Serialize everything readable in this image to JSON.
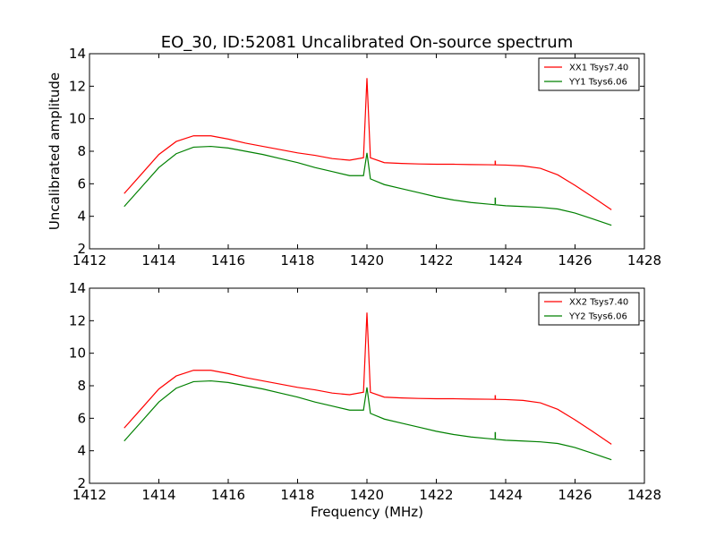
{
  "title": "EO_30, ID:52081 Uncalibrated On-source spectrum",
  "chart_data": [
    {
      "type": "line",
      "ylabel": "Uncalibrated amplitude",
      "xlabel": "",
      "xlim": [
        1412,
        1428
      ],
      "ylim": [
        2,
        14
      ],
      "xticks": [
        "1412",
        "1414",
        "1416",
        "1418",
        "1420",
        "1422",
        "1424",
        "1426",
        "1428"
      ],
      "yticks": [
        "2",
        "4",
        "6",
        "8",
        "10",
        "12",
        "14"
      ],
      "legend_position": "top-right",
      "series": [
        {
          "name": "XX1 Tsys7.40",
          "color": "#ff0000",
          "x": [
            1413.0,
            1413.5,
            1414.0,
            1414.5,
            1415.0,
            1415.5,
            1416.0,
            1416.5,
            1417.0,
            1417.5,
            1418.0,
            1418.5,
            1419.0,
            1419.5,
            1419.9,
            1420.0,
            1420.1,
            1420.5,
            1421.0,
            1421.5,
            1422.0,
            1422.5,
            1423.0,
            1423.5,
            1424.0,
            1424.5,
            1425.0,
            1425.5,
            1426.0,
            1426.5,
            1427.05
          ],
          "y": [
            5.4,
            6.6,
            7.8,
            8.6,
            8.95,
            8.95,
            8.75,
            8.5,
            8.3,
            8.1,
            7.9,
            7.75,
            7.55,
            7.45,
            7.6,
            12.5,
            7.6,
            7.3,
            7.25,
            7.22,
            7.2,
            7.2,
            7.18,
            7.17,
            7.15,
            7.1,
            6.95,
            6.55,
            5.9,
            5.2,
            4.4
          ]
        },
        {
          "name": "YY1 Tsys6.06",
          "color": "#008000",
          "x": [
            1413.0,
            1413.5,
            1414.0,
            1414.5,
            1415.0,
            1415.5,
            1416.0,
            1416.5,
            1417.0,
            1417.5,
            1418.0,
            1418.5,
            1419.0,
            1419.5,
            1419.9,
            1420.0,
            1420.1,
            1420.5,
            1421.0,
            1421.5,
            1422.0,
            1422.5,
            1423.0,
            1423.5,
            1424.0,
            1424.5,
            1425.0,
            1425.5,
            1426.0,
            1426.5,
            1427.05
          ],
          "y": [
            4.6,
            5.8,
            7.0,
            7.85,
            8.25,
            8.3,
            8.2,
            8.0,
            7.8,
            7.55,
            7.3,
            7.0,
            6.75,
            6.5,
            6.5,
            7.9,
            6.3,
            5.95,
            5.7,
            5.45,
            5.2,
            5.0,
            4.85,
            4.75,
            4.65,
            4.6,
            4.55,
            4.45,
            4.2,
            3.85,
            3.45
          ]
        }
      ]
    },
    {
      "type": "line",
      "ylabel": "",
      "xlabel": "Frequency (MHz)",
      "xlim": [
        1412,
        1428
      ],
      "ylim": [
        2,
        14
      ],
      "xticks": [
        "1412",
        "1414",
        "1416",
        "1418",
        "1420",
        "1422",
        "1424",
        "1426",
        "1428"
      ],
      "yticks": [
        "2",
        "4",
        "6",
        "8",
        "10",
        "12",
        "14"
      ],
      "legend_position": "top-right",
      "series": [
        {
          "name": "XX2 Tsys7.40",
          "color": "#ff0000",
          "x": [
            1413.0,
            1413.5,
            1414.0,
            1414.5,
            1415.0,
            1415.5,
            1416.0,
            1416.5,
            1417.0,
            1417.5,
            1418.0,
            1418.5,
            1419.0,
            1419.5,
            1419.9,
            1420.0,
            1420.1,
            1420.5,
            1421.0,
            1421.5,
            1422.0,
            1422.5,
            1423.0,
            1423.5,
            1424.0,
            1424.5,
            1425.0,
            1425.5,
            1426.0,
            1426.5,
            1427.05
          ],
          "y": [
            5.4,
            6.6,
            7.8,
            8.6,
            8.95,
            8.95,
            8.75,
            8.5,
            8.3,
            8.1,
            7.9,
            7.75,
            7.55,
            7.45,
            7.6,
            12.5,
            7.6,
            7.3,
            7.25,
            7.22,
            7.2,
            7.2,
            7.18,
            7.17,
            7.15,
            7.1,
            6.95,
            6.55,
            5.9,
            5.2,
            4.4
          ]
        },
        {
          "name": "YY2 Tsys6.06",
          "color": "#008000",
          "x": [
            1413.0,
            1413.5,
            1414.0,
            1414.5,
            1415.0,
            1415.5,
            1416.0,
            1416.5,
            1417.0,
            1417.5,
            1418.0,
            1418.5,
            1419.0,
            1419.5,
            1419.9,
            1420.0,
            1420.1,
            1420.5,
            1421.0,
            1421.5,
            1422.0,
            1422.5,
            1423.0,
            1423.5,
            1424.0,
            1424.5,
            1425.0,
            1425.5,
            1426.0,
            1426.5,
            1427.05
          ],
          "y": [
            4.6,
            5.8,
            7.0,
            7.85,
            8.25,
            8.3,
            8.2,
            8.0,
            7.8,
            7.55,
            7.3,
            7.0,
            6.75,
            6.5,
            6.5,
            7.9,
            6.3,
            5.95,
            5.7,
            5.45,
            5.2,
            5.0,
            4.85,
            4.75,
            4.65,
            4.6,
            4.55,
            4.45,
            4.2,
            3.85,
            3.45
          ]
        }
      ]
    }
  ]
}
